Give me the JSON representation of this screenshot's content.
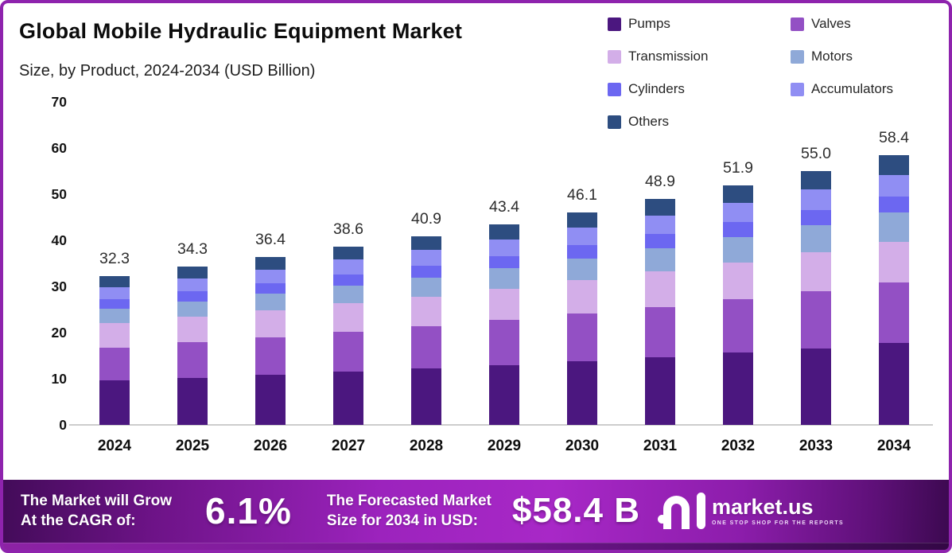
{
  "header": {
    "title": "Global Mobile Hydraulic Equipment Market",
    "subtitle": "Size, by Product, 2024-2034 (USD Billion)"
  },
  "chart_data": {
    "type": "bar",
    "stacked": true,
    "title": "Global Mobile Hydraulic Equipment Market Size, by Product, 2024-2034 (USD Billion)",
    "unit": "USD Billion",
    "categories": [
      "2024",
      "2025",
      "2026",
      "2027",
      "2028",
      "2029",
      "2030",
      "2031",
      "2032",
      "2033",
      "2034"
    ],
    "totals": [
      32.3,
      34.3,
      36.4,
      38.6,
      40.9,
      43.4,
      46.1,
      48.9,
      51.9,
      55.0,
      58.4
    ],
    "value_labels": [
      "32.3",
      "34.3",
      "36.4",
      "38.6",
      "40.9",
      "43.4",
      "46.1",
      "48.9",
      "51.9",
      "55.0",
      "58.4"
    ],
    "series": [
      {
        "name": "Pumps",
        "color": "#4b177f",
        "values": [
          9.6,
          10.2,
          10.9,
          11.5,
          12.2,
          13.0,
          13.9,
          14.7,
          15.7,
          16.6,
          17.7
        ]
      },
      {
        "name": "Valves",
        "color": "#9350c4",
        "values": [
          7.2,
          7.7,
          8.1,
          8.6,
          9.1,
          9.7,
          10.3,
          10.9,
          11.6,
          12.3,
          13.1
        ]
      },
      {
        "name": "Transmission",
        "color": "#d3aee8",
        "values": [
          5.3,
          5.6,
          5.9,
          6.2,
          6.5,
          6.8,
          7.2,
          7.6,
          8.0,
          8.4,
          8.8
        ]
      },
      {
        "name": "Motors",
        "color": "#8fa9d8",
        "values": [
          3.0,
          3.2,
          3.5,
          3.8,
          4.1,
          4.4,
          4.7,
          5.1,
          5.5,
          5.9,
          6.4
        ]
      },
      {
        "name": "Cylinders",
        "color": "#6c67f1",
        "values": [
          2.1,
          2.2,
          2.3,
          2.5,
          2.6,
          2.7,
          2.9,
          3.0,
          3.2,
          3.3,
          3.5
        ]
      },
      {
        "name": "Accumulators",
        "color": "#908ef3",
        "values": [
          2.7,
          2.9,
          3.0,
          3.2,
          3.4,
          3.6,
          3.8,
          4.0,
          4.2,
          4.4,
          4.7
        ]
      },
      {
        "name": "Others",
        "color": "#2d4d80",
        "values": [
          2.4,
          2.5,
          2.7,
          2.8,
          3.0,
          3.2,
          3.4,
          3.6,
          3.8,
          4.0,
          4.2
        ]
      }
    ],
    "ylim": [
      0,
      70
    ],
    "yticks": [
      0,
      10,
      20,
      30,
      40,
      50,
      60,
      70
    ],
    "legend_position": "top-right",
    "grid": false
  },
  "banner": {
    "cagr_label_line1": "The Market will Grow",
    "cagr_label_line2": "At the CAGR of:",
    "cagr_value": "6.1%",
    "forecast_label_line1": "The Forecasted Market",
    "forecast_label_line2": "Size for 2034 in USD:",
    "forecast_value": "$58.4 B",
    "brand": {
      "name": "market.us",
      "tagline": "ONE STOP SHOP FOR THE REPORTS"
    }
  },
  "colors": {
    "frame_border": "#8e23ad",
    "axis_line": "#cdcdcd",
    "banner_dark": "#430b59",
    "banner_bright": "#a828c7",
    "text_dark": "#0c0c0c",
    "text_white": "#ffffff"
  }
}
